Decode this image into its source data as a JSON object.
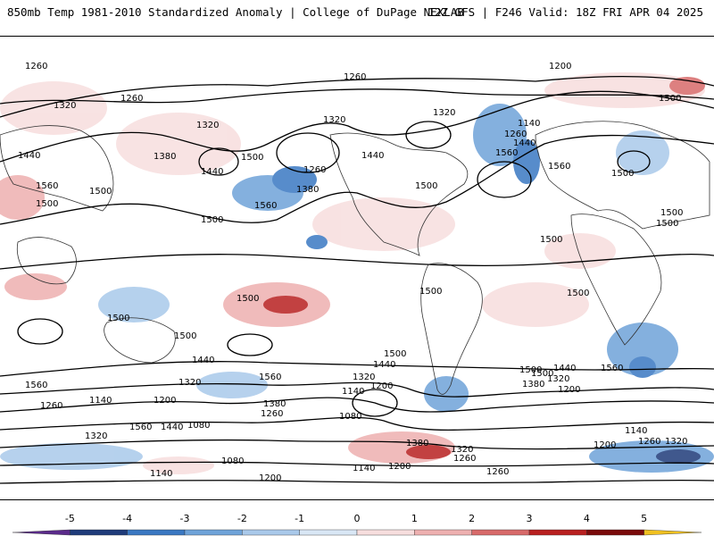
{
  "header": {
    "title_left": "850mb Temp 1981-2010 Standardized Anomaly | College of DuPage NEXLAB",
    "title_right": "12Z GFS | F246 Valid: 18Z FRI APR 04 2025"
  },
  "contour_labels": [
    "1260",
    "1260",
    "1260",
    "1200",
    "1500",
    "1320",
    "1320",
    "1320",
    "1320",
    "1140",
    "1260",
    "1440",
    "1380",
    "1440",
    "1500",
    "1260",
    "1440",
    "1560",
    "1560",
    "1500",
    "1560",
    "1500",
    "1380",
    "1500",
    "1560",
    "1500",
    "1440",
    "1500",
    "1500",
    "1500",
    "1500",
    "1500",
    "1500",
    "1500",
    "1500",
    "1500",
    "1500",
    "1440",
    "1560",
    "1320",
    "1440",
    "1560",
    "1500",
    "1320",
    "1200",
    "1140",
    "1260",
    "1380",
    "1260",
    "1080",
    "1380",
    "1500",
    "1440",
    "1320",
    "1200",
    "1560",
    "1140",
    "1260",
    "1320",
    "1200",
    "1200",
    "1140",
    "1080",
    "1320",
    "1080",
    "1380",
    "1320",
    "1260",
    "1140",
    "1200",
    "1260",
    "1140",
    "1200",
    "1560",
    "1440",
    "1500"
  ],
  "legend": {
    "ticks": [
      "-5",
      "-4",
      "-3",
      "-2",
      "-1",
      "0",
      "1",
      "2",
      "3",
      "4",
      "5"
    ],
    "colors": [
      "#5a2a8a",
      "#1f3b7a",
      "#3a78c2",
      "#6fa3d9",
      "#a9c9ea",
      "#d9e7f5",
      "#f7dede",
      "#eeb0b0",
      "#d86a6a",
      "#b82020",
      "#7a0a0a",
      "#f0c020"
    ]
  }
}
